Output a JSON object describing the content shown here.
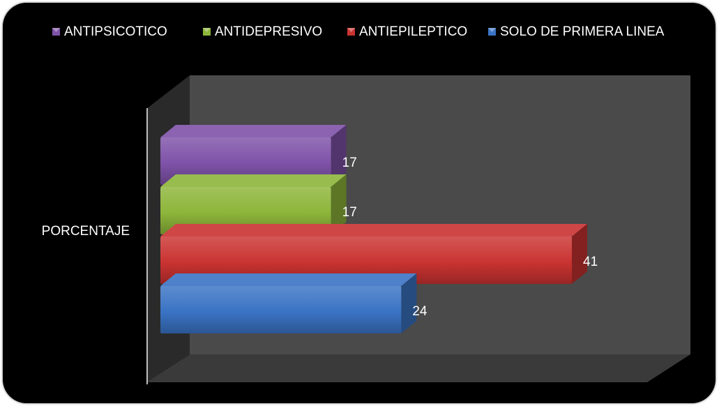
{
  "chart_data": {
    "type": "bar",
    "orientation": "horizontal",
    "three_d": true,
    "categories": [
      "PORCENTAJE"
    ],
    "series": [
      {
        "name": "ANTIPSICOTICO",
        "values": [
          17
        ],
        "color": "#7e52a8"
      },
      {
        "name": "ANTIDEPRESIVO",
        "values": [
          17
        ],
        "color": "#8db53a"
      },
      {
        "name": "ANTIEPILEPTICO",
        "values": [
          41
        ],
        "color": "#c93331"
      },
      {
        "name": "SOLO DE PRIMERA LINEA",
        "values": [
          24
        ],
        "color": "#3a73c4"
      }
    ],
    "xlim": [
      0,
      50
    ],
    "legend_position": "top",
    "grid": false,
    "background": "#000000",
    "wall_color": "#4a4a4a",
    "floor_color": "#3a3a3a",
    "label_color": "#ffffff"
  }
}
